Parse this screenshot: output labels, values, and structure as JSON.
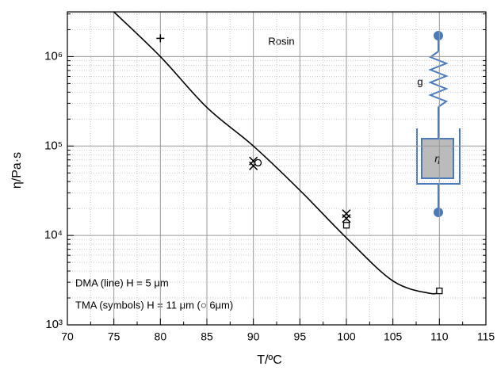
{
  "chart_data": {
    "type": "line",
    "annotations": {
      "sample": "Rosin",
      "spring": "g",
      "dashpot": "η",
      "dma": "DMA (line) H = 5 μm",
      "tma": "TMA (symbols) H = 11 μm (○ 6μm)"
    },
    "xlabel": "T/ºC",
    "ylabel": "η/Pa·s",
    "xlim": [
      70,
      115
    ],
    "xticks": [
      70,
      75,
      80,
      85,
      90,
      95,
      100,
      105,
      110,
      115
    ],
    "ylim": [
      1000,
      3162278
    ],
    "log_y": true,
    "grid": true,
    "yticks": [
      {
        "value": 1000,
        "label": "10³"
      },
      {
        "value": 10000,
        "label": "10⁴"
      },
      {
        "value": 100000,
        "label": "10⁵"
      },
      {
        "value": 1000000,
        "label": "10⁶"
      }
    ],
    "series": [
      {
        "marker": "line",
        "color": "#000000",
        "x": [
          75,
          80,
          85,
          90,
          95,
          100,
          105,
          109,
          110
        ],
        "values": [
          3162278,
          1000000,
          270000,
          100000,
          32000,
          9400,
          3100,
          2250,
          2400
        ]
      },
      {
        "marker": "plus",
        "color": "#000000",
        "x": [
          80
        ],
        "values": [
          1600000
        ]
      },
      {
        "marker": "cross",
        "color": "#000000",
        "x": [
          90,
          90,
          100,
          100
        ],
        "values": [
          60000,
          68000,
          17500,
          15500
        ]
      },
      {
        "marker": "circle",
        "color": "#000000",
        "x": [
          90.5
        ],
        "values": [
          65000
        ]
      },
      {
        "marker": "square",
        "color": "#000000",
        "x": [
          100,
          110
        ],
        "values": [
          13000,
          2400
        ]
      }
    ]
  }
}
